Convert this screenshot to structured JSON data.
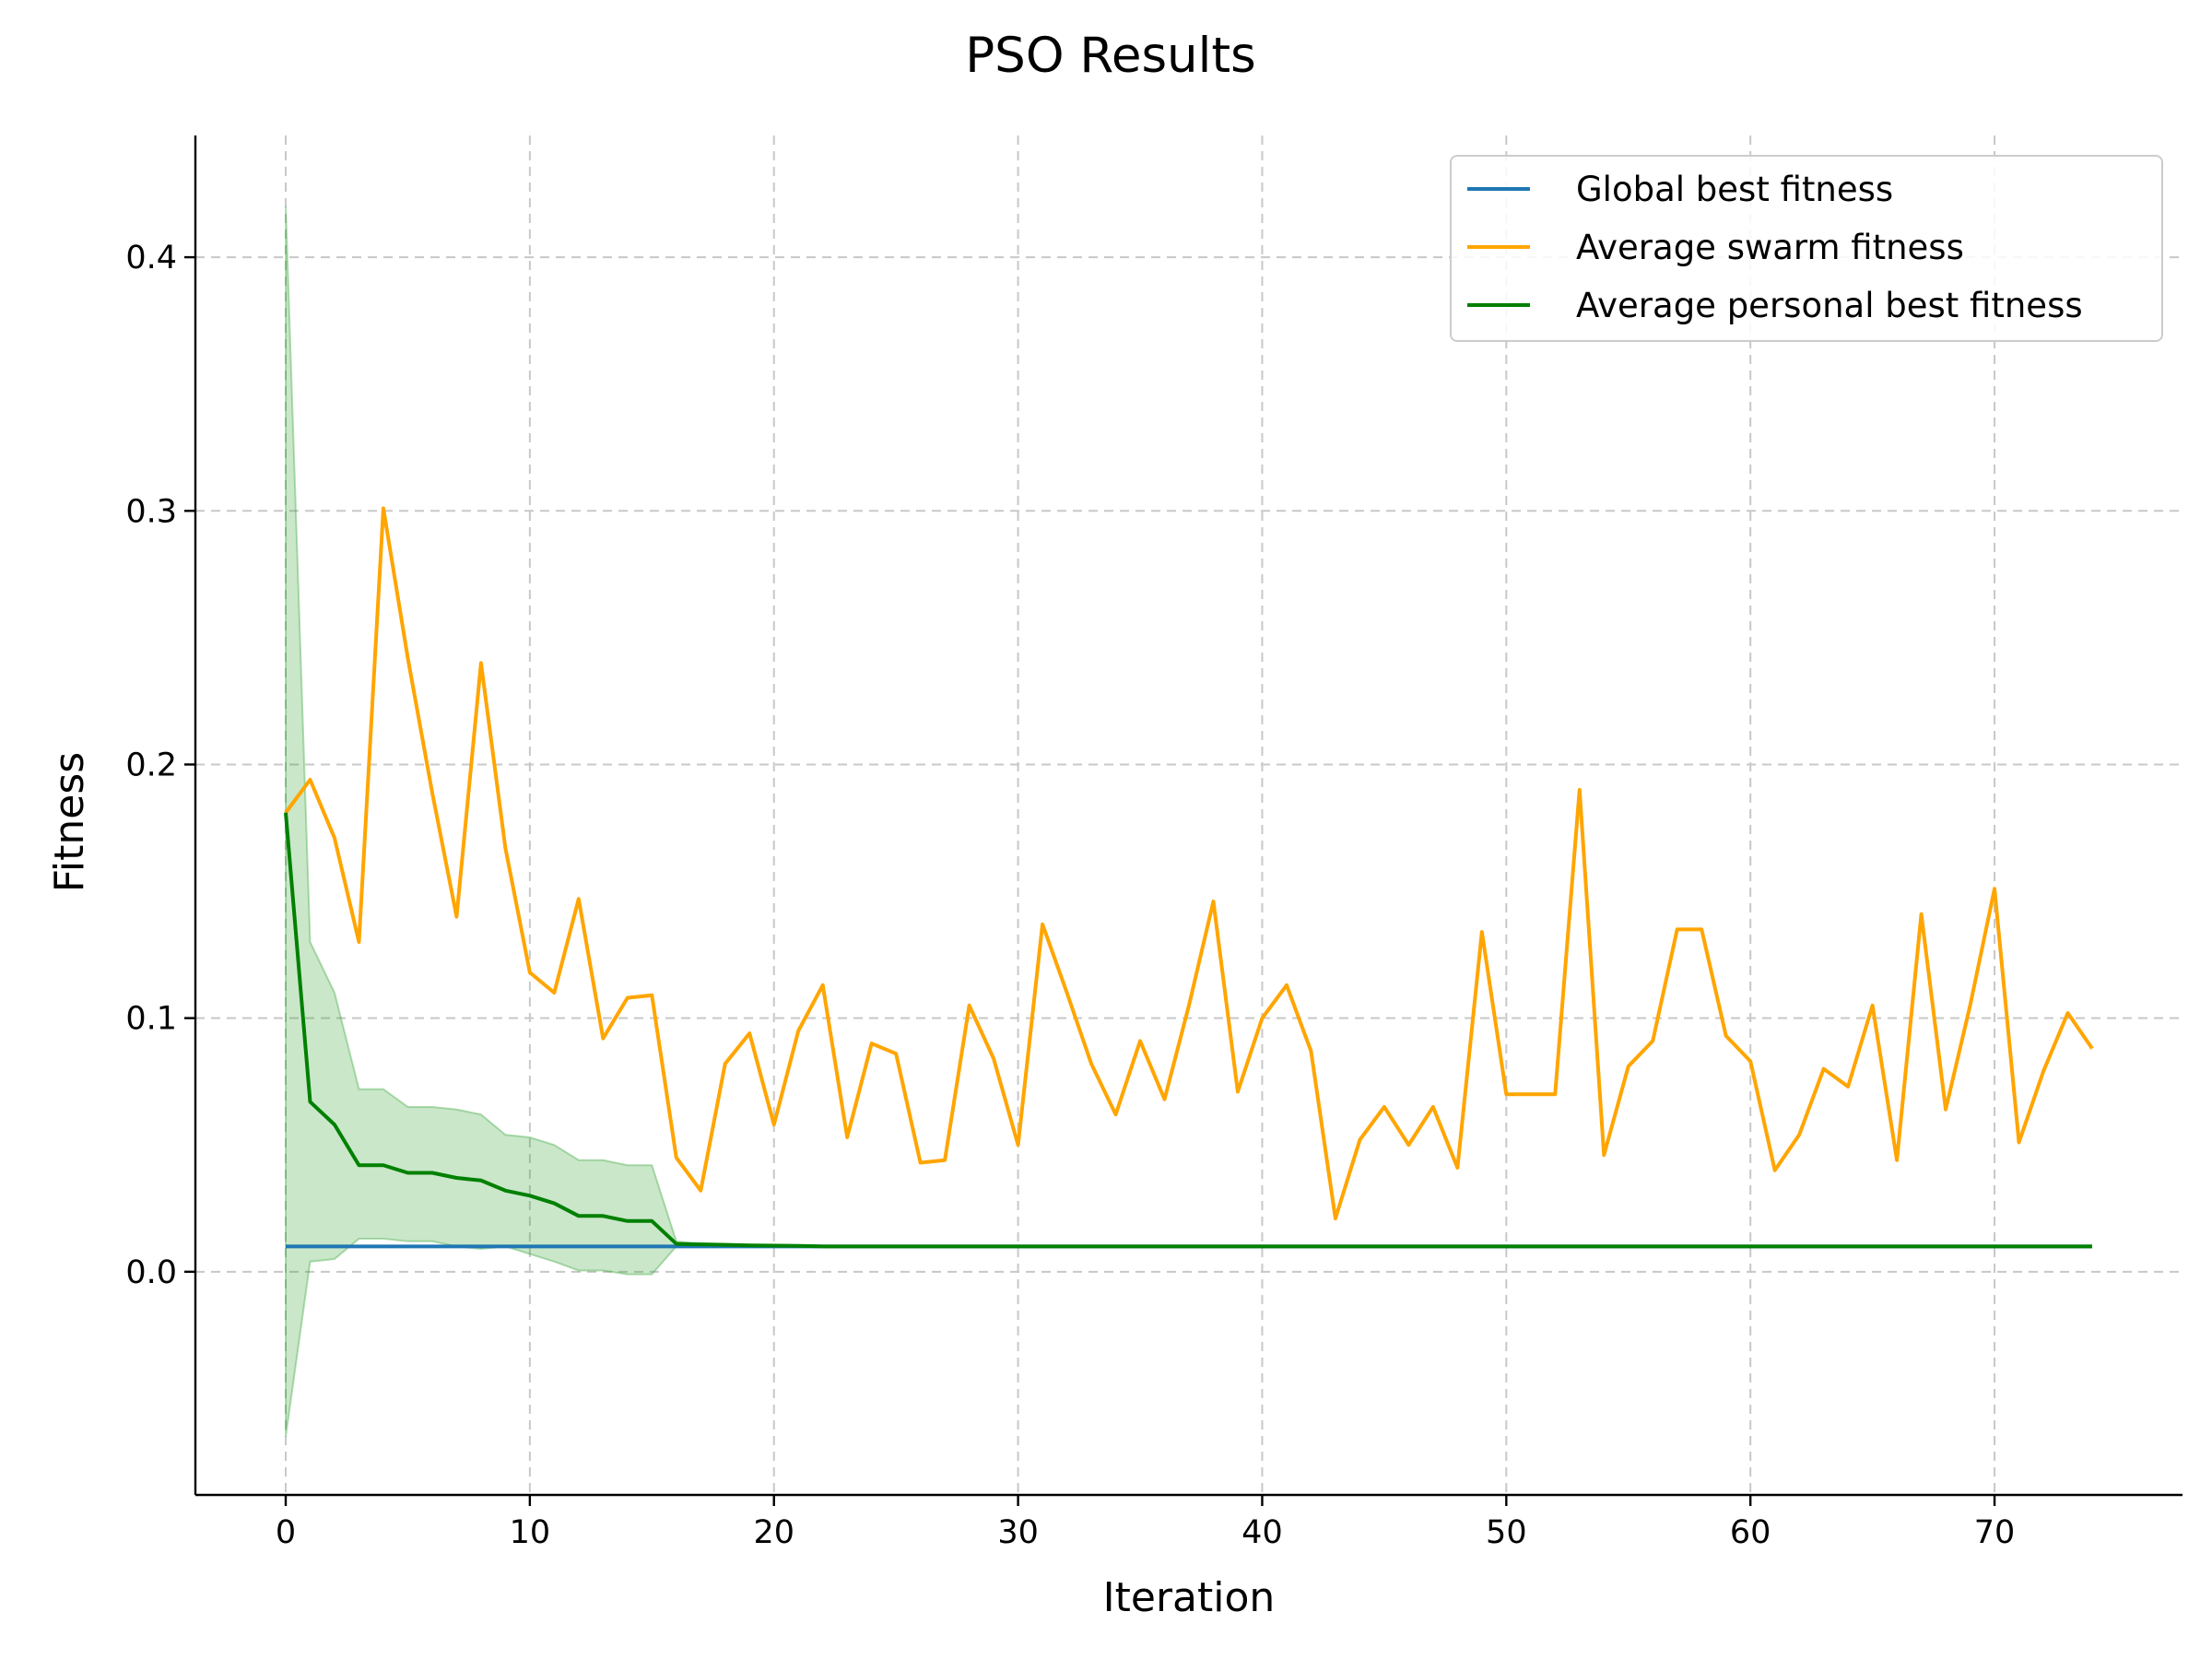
{
  "chart_data": {
    "type": "line",
    "title": "PSO Results",
    "xlabel": "Iteration",
    "ylabel": "Fitness",
    "xlim": [
      -3.7,
      77.7
    ],
    "ylim": [
      -0.088,
      0.448
    ],
    "xticks": [
      0,
      10,
      20,
      30,
      40,
      50,
      60,
      70
    ],
    "yticks": [
      0.0,
      0.1,
      0.2,
      0.3,
      0.4
    ],
    "grid": true,
    "legend_position": "top-right",
    "series": [
      {
        "name": "Global best fitness",
        "color": "#1f77b4",
        "x": [
          0,
          74
        ],
        "values": [
          0.01,
          0.01
        ]
      },
      {
        "name": "Average swarm fitness",
        "color": "#ffa500",
        "x": [
          0,
          1,
          2,
          3,
          4,
          5,
          6,
          7,
          8,
          9,
          10,
          11,
          12,
          13,
          14,
          15,
          16,
          17,
          18,
          19,
          20,
          21,
          22,
          23,
          24,
          25,
          26,
          27,
          28,
          29,
          30,
          31,
          32,
          33,
          34,
          35,
          36,
          37,
          38,
          39,
          40,
          41,
          42,
          43,
          44,
          45,
          46,
          47,
          48,
          49,
          50,
          51,
          52,
          53,
          54,
          55,
          56,
          57,
          58,
          59,
          60,
          61,
          62,
          63,
          64,
          65,
          66,
          67,
          68,
          69,
          70,
          71,
          72,
          73,
          74
        ],
        "values": [
          0.181,
          0.194,
          0.171,
          0.13,
          0.301,
          0.242,
          0.189,
          0.14,
          0.24,
          0.167,
          0.118,
          0.11,
          0.147,
          0.092,
          0.108,
          0.109,
          0.045,
          0.032,
          0.082,
          0.094,
          0.058,
          0.095,
          0.113,
          0.053,
          0.09,
          0.086,
          0.043,
          0.044,
          0.105,
          0.084,
          0.05,
          0.137,
          0.11,
          0.082,
          0.062,
          0.091,
          0.068,
          0.105,
          0.146,
          0.071,
          0.1,
          0.113,
          0.087,
          0.021,
          0.052,
          0.065,
          0.05,
          0.065,
          0.041,
          0.134,
          0.07,
          0.07,
          0.07,
          0.19,
          0.046,
          0.081,
          0.091,
          0.135,
          0.135,
          0.093,
          0.083,
          0.04,
          0.054,
          0.08,
          0.073,
          0.105,
          0.044,
          0.141,
          0.064,
          0.105,
          0.151,
          0.051,
          0.079,
          0.102,
          0.088
        ]
      },
      {
        "name": "Average personal best fitness",
        "color": "#008000",
        "band_color": "#2ca02c",
        "x": [
          0,
          1,
          2,
          3,
          4,
          5,
          6,
          7,
          8,
          9,
          10,
          11,
          12,
          13,
          14,
          15,
          16,
          17,
          18,
          19,
          20,
          21,
          22,
          74
        ],
        "values": [
          0.181,
          0.067,
          0.058,
          0.042,
          0.042,
          0.039,
          0.039,
          0.037,
          0.036,
          0.032,
          0.03,
          0.027,
          0.022,
          0.022,
          0.02,
          0.02,
          0.011,
          0.0108,
          0.0106,
          0.0104,
          0.0103,
          0.0102,
          0.01,
          0.01
        ],
        "upper": [
          0.42,
          0.13,
          0.11,
          0.072,
          0.072,
          0.065,
          0.065,
          0.064,
          0.062,
          0.054,
          0.053,
          0.05,
          0.044,
          0.044,
          0.042,
          0.042,
          0.012,
          0.011,
          0.0108,
          0.0106,
          0.0104,
          0.0103,
          0.01,
          0.01
        ],
        "lower": [
          -0.065,
          0.004,
          0.005,
          0.013,
          0.013,
          0.012,
          0.012,
          0.01,
          0.009,
          0.01,
          0.007,
          0.004,
          0.0005,
          0.0005,
          -0.001,
          -0.001,
          0.01,
          0.0105,
          0.0104,
          0.0102,
          0.0102,
          0.0101,
          0.01,
          0.01
        ]
      }
    ]
  }
}
